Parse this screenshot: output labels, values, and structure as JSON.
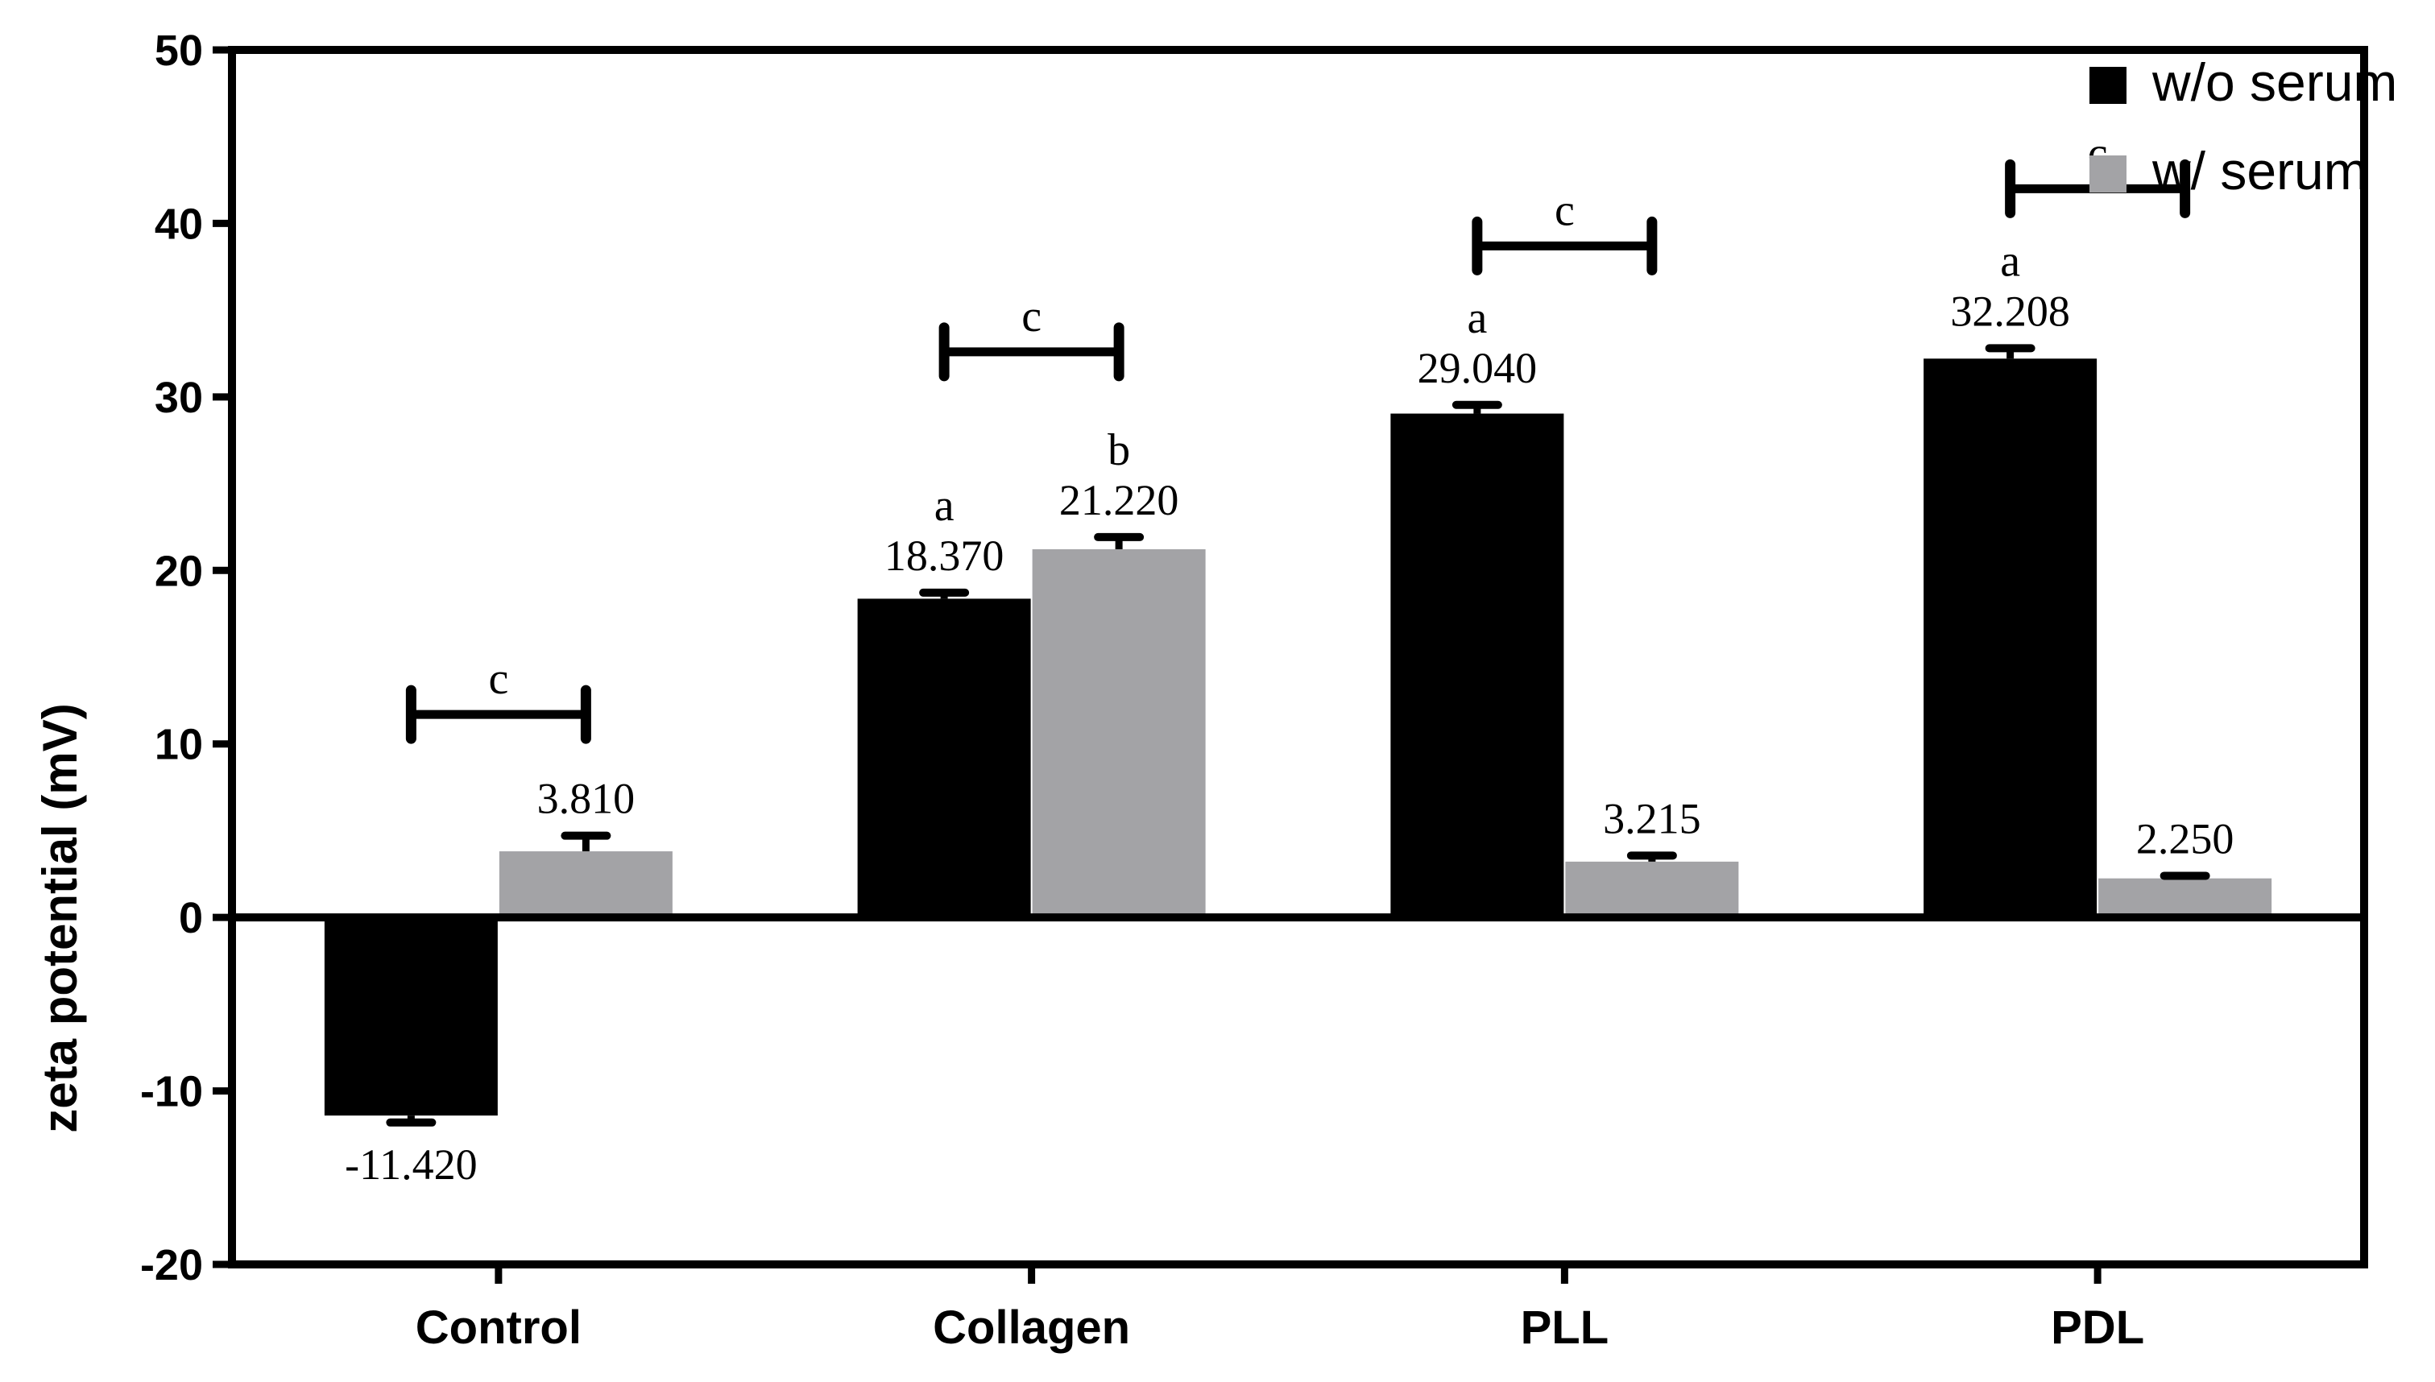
{
  "chart_data": {
    "type": "bar",
    "title": "",
    "xlabel": "",
    "ylabel": "zeta potential (mV)",
    "ylim": [
      -20,
      50
    ],
    "yticks": [
      -20,
      -10,
      0,
      10,
      20,
      30,
      40,
      50
    ],
    "grid": false,
    "legend_position": "top-right",
    "categories": [
      "Control",
      "Collagen",
      "PLL",
      "PDL"
    ],
    "series": [
      {
        "name": "w/o serum",
        "color": "#000000",
        "values": [
          -11.42,
          18.37,
          29.04,
          32.208
        ],
        "errors": [
          0.4,
          0.35,
          0.5,
          0.6
        ],
        "value_labels": [
          "-11.420",
          "18.370",
          "29.040",
          "32.208"
        ],
        "letters": [
          "",
          "a",
          "a",
          "a"
        ]
      },
      {
        "name": "w/ serum",
        "color": "#a3a3a6",
        "values": [
          3.81,
          21.22,
          3.215,
          2.25
        ],
        "errors": [
          0.9,
          0.7,
          0.35,
          0.15
        ],
        "value_labels": [
          "3.810",
          "21.220",
          "3.215",
          "2.250"
        ],
        "letters": [
          "",
          "b",
          "",
          ""
        ]
      }
    ],
    "brackets": [
      {
        "category": "Control",
        "level": 11.7,
        "label": "c"
      },
      {
        "category": "Collagen",
        "level": 32.6,
        "label": "c"
      },
      {
        "category": "PLL",
        "level": 38.7,
        "label": "c"
      },
      {
        "category": "PDL",
        "level": 42.0,
        "label": "c"
      }
    ]
  }
}
